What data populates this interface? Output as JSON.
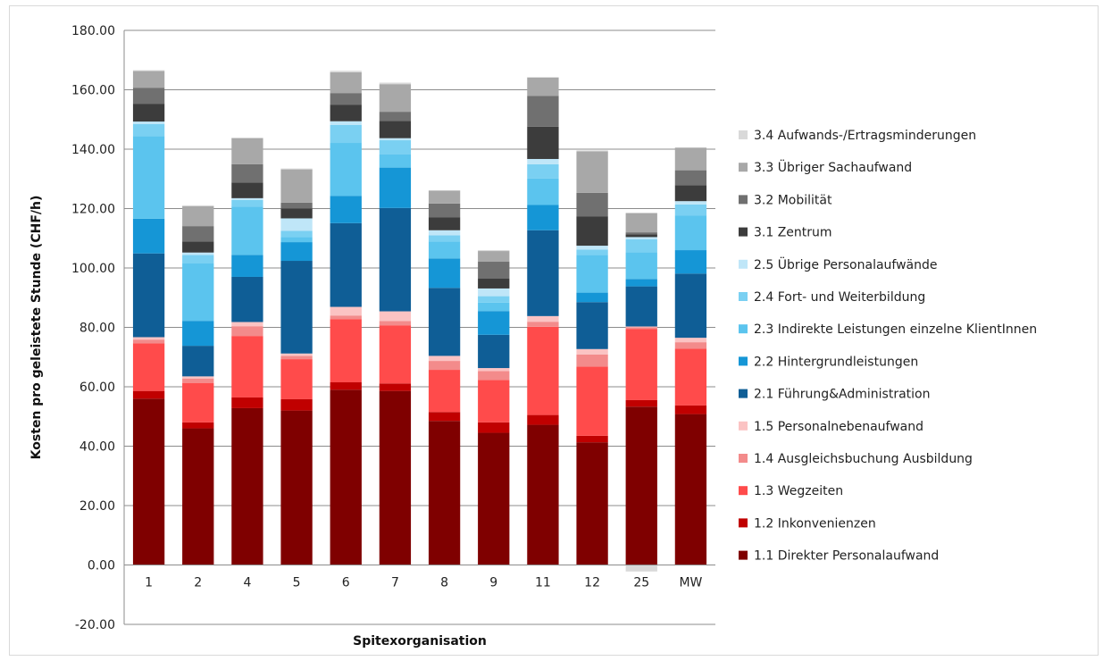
{
  "chart_data": {
    "type": "bar",
    "stacked": true,
    "xlabel": "Spitexorganisation",
    "ylabel": "Kosten pro geleistete Stunde (CHF/h)",
    "ylim": [
      -20,
      180
    ],
    "y_ticks": [
      "-20.00",
      "0.00",
      "20.00",
      "40.00",
      "60.00",
      "80.00",
      "100.00",
      "120.00",
      "140.00",
      "160.00",
      "180.00"
    ],
    "grid": true,
    "legend_position": "right",
    "categories": [
      "1",
      "2",
      "4",
      "5",
      "6",
      "7",
      "8",
      "9",
      "11",
      "12",
      "25",
      "MW"
    ],
    "series": [
      {
        "name": "1.1 Direkter Personalaufwand",
        "color": "#7f0000",
        "values": [
          56.0,
          46.0,
          52.8,
          52.0,
          59.0,
          58.6,
          48.5,
          44.5,
          47.2,
          41.3,
          53.3,
          50.8
        ]
      },
      {
        "name": "1.2 Inkonvenienzen",
        "color": "#c00000",
        "values": [
          2.6,
          2.0,
          3.6,
          3.8,
          2.5,
          2.5,
          3.0,
          3.5,
          3.3,
          2.2,
          2.2,
          2.9
        ]
      },
      {
        "name": "1.3 Wegzeiten",
        "color": "#ff4b4b",
        "values": [
          16.0,
          13.3,
          20.7,
          13.5,
          21.3,
          19.6,
          14.2,
          14.3,
          29.7,
          23.3,
          24.0,
          19.1
        ]
      },
      {
        "name": "1.4 Ausgleichsbuchung Ausbildung",
        "color": "#f38b8b",
        "values": [
          1.3,
          1.5,
          3.3,
          1.1,
          1.2,
          1.4,
          3.0,
          3.0,
          1.7,
          4.1,
          0.5,
          2.2
        ]
      },
      {
        "name": "1.5 Personalnebenaufwand",
        "color": "#fbc3c3",
        "values": [
          0.8,
          0.7,
          1.4,
          0.8,
          2.9,
          3.3,
          1.7,
          1.0,
          1.9,
          1.8,
          0.3,
          1.5
        ]
      },
      {
        "name": "2.1 Führung&Administration",
        "color": "#0f5e96",
        "values": [
          28.2,
          10.3,
          15.2,
          31.2,
          28.2,
          34.8,
          22.9,
          11.2,
          28.9,
          15.8,
          13.5,
          21.6
        ]
      },
      {
        "name": "2.2 Hintergrundleistungen",
        "color": "#1596d6",
        "values": [
          11.7,
          8.4,
          7.4,
          6.3,
          9.2,
          13.6,
          9.9,
          8.0,
          8.5,
          3.2,
          2.5,
          7.9
        ]
      },
      {
        "name": "2.3 Indirekte Leistungen einzelne KlientInnen",
        "color": "#5bc4ee",
        "values": [
          27.8,
          19.3,
          16.3,
          1.7,
          17.8,
          4.4,
          5.7,
          2.8,
          8.9,
          12.7,
          9.0,
          11.6
        ]
      },
      {
        "name": "2.4 Fort- und Weiterbildung",
        "color": "#7ad0f2",
        "values": [
          4.1,
          2.9,
          2.2,
          2.1,
          6.1,
          4.8,
          2.1,
          2.2,
          4.8,
          1.8,
          4.4,
          3.8
        ]
      },
      {
        "name": "2.5 Übrige Personalaufwände",
        "color": "#bfe6f8",
        "values": [
          0.8,
          0.8,
          0.6,
          4.2,
          1.2,
          0.7,
          1.7,
          2.6,
          1.8,
          1.3,
          0.7,
          1.1
        ]
      },
      {
        "name": "3.1 Zentrum",
        "color": "#3c3c3c",
        "values": [
          6.0,
          3.7,
          5.3,
          3.3,
          5.6,
          5.8,
          4.4,
          3.4,
          10.9,
          9.9,
          0.9,
          5.4
        ]
      },
      {
        "name": "3.2 Mobilität",
        "color": "#707070",
        "values": [
          5.4,
          5.2,
          6.1,
          2.0,
          3.9,
          3.1,
          4.6,
          5.6,
          10.3,
          7.9,
          0.7,
          5.0
        ]
      },
      {
        "name": "3.3 Übriger Sachaufwand",
        "color": "#a8a8a8",
        "values": [
          5.6,
          6.7,
          8.8,
          11.2,
          7.0,
          9.3,
          4.3,
          3.6,
          6.2,
          14.0,
          6.5,
          7.6
        ]
      },
      {
        "name": "3.4 Aufwands-/Ertragsminderungen",
        "color": "#d9d9d9",
        "values": [
          0.3,
          0.3,
          0.2,
          0.3,
          0.5,
          0.5,
          0.2,
          0.3,
          0.2,
          0.3,
          -2.2,
          0.1
        ]
      }
    ]
  }
}
